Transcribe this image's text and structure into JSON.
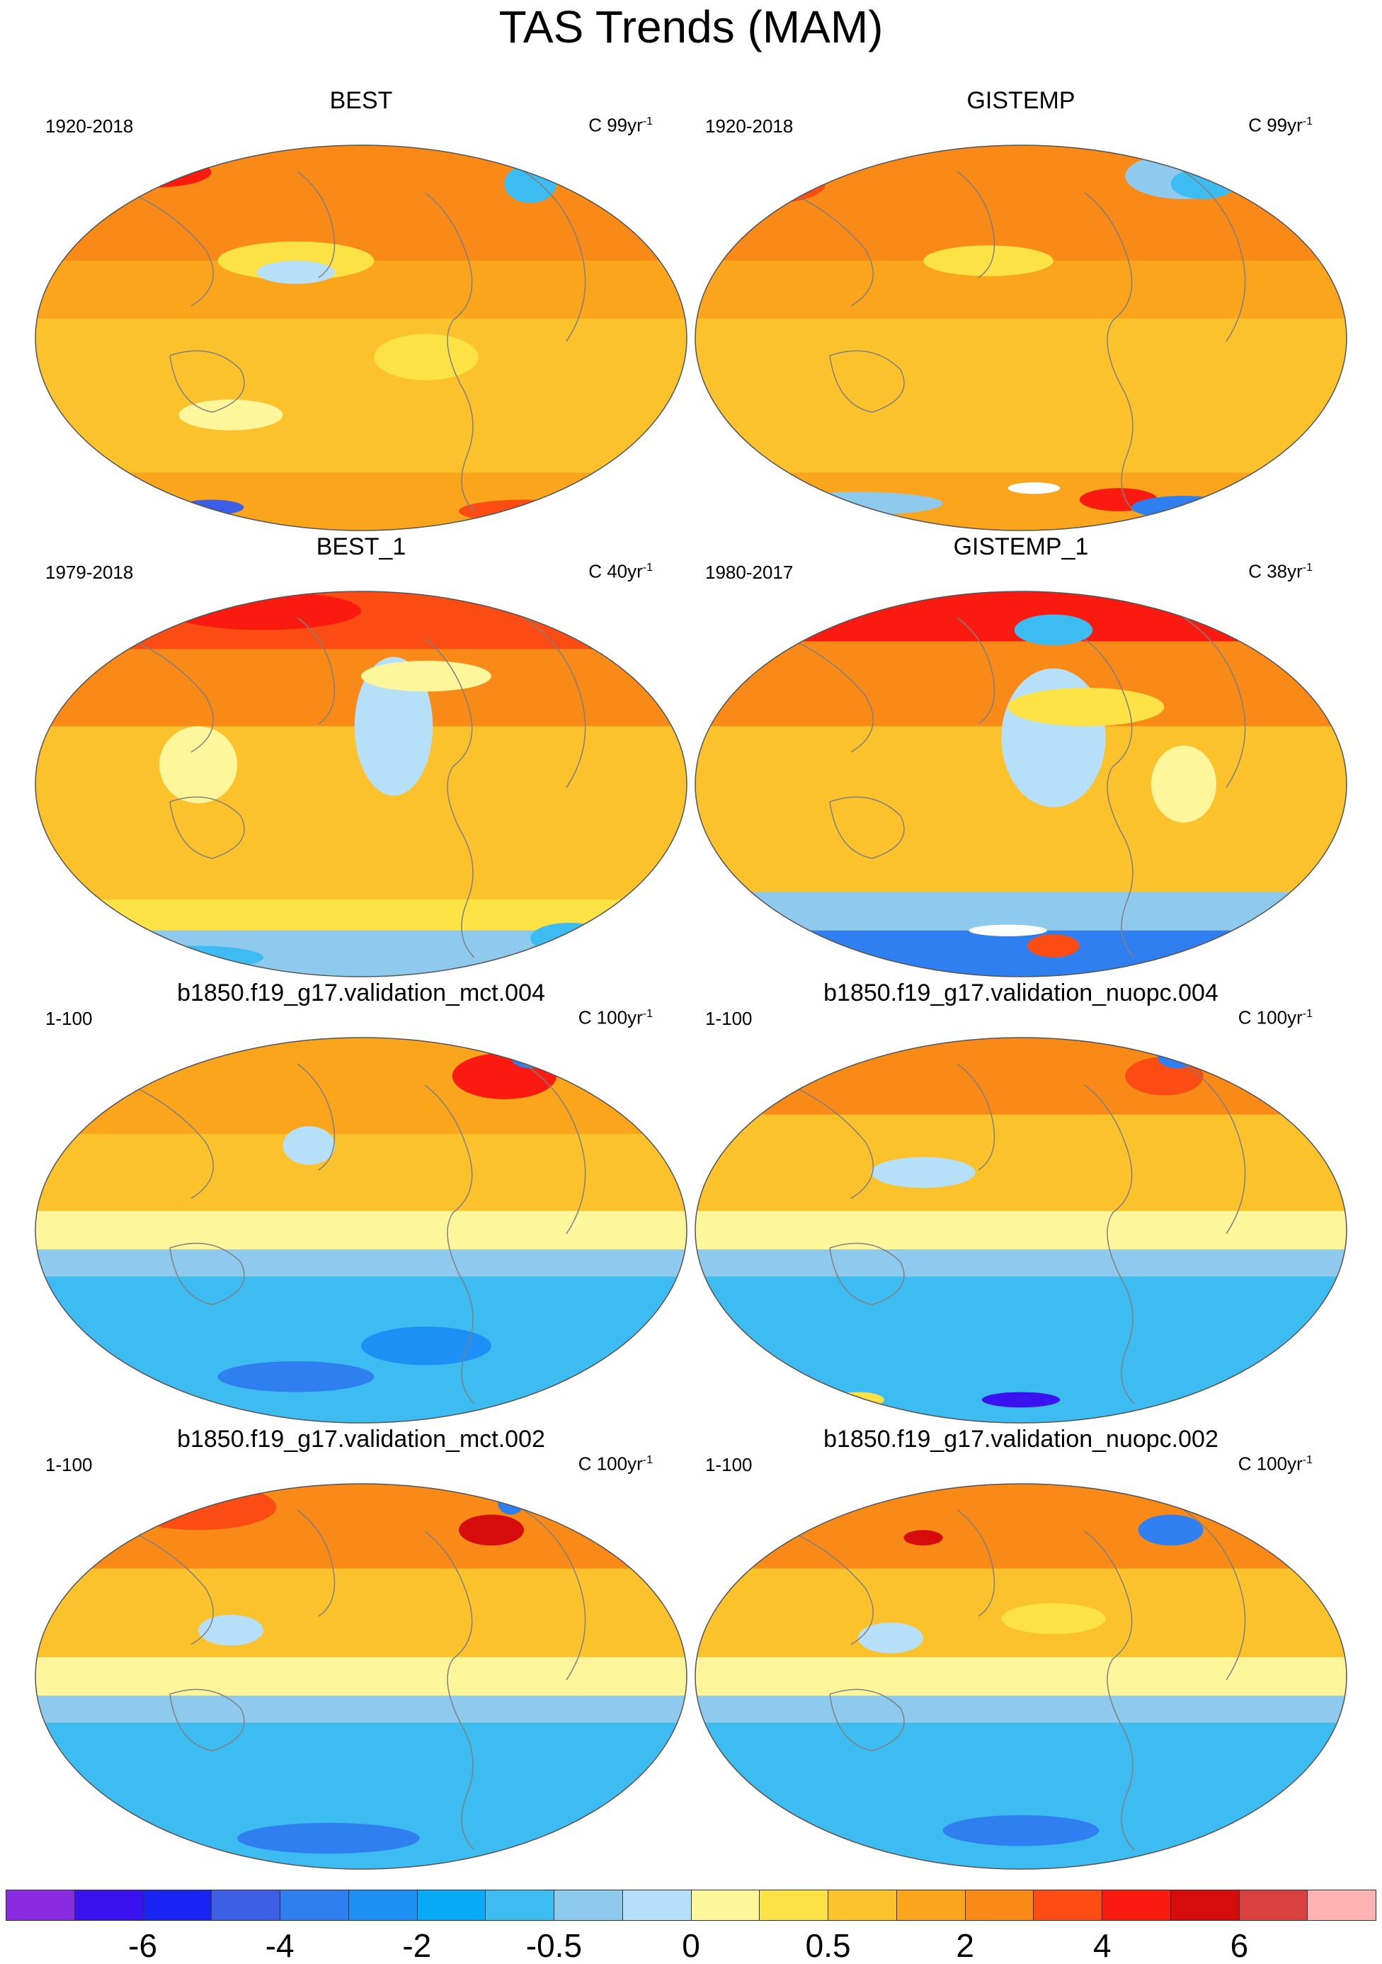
{
  "title": "TAS Trends (MAM)",
  "panels": [
    {
      "title": "BEST",
      "period": "1920-2018",
      "units_base": "C 99yr",
      "units_exp": "-1",
      "pattern": "obs_long_a"
    },
    {
      "title": "GISTEMP",
      "period": "1920-2018",
      "units_base": "C 99yr",
      "units_exp": "-1",
      "pattern": "obs_long_b"
    },
    {
      "title": "BEST_1",
      "period": "1979-2018",
      "units_base": "C 40yr",
      "units_exp": "-1",
      "pattern": "obs_short_a"
    },
    {
      "title": "GISTEMP_1",
      "period": "1980-2017",
      "units_base": "C 38yr",
      "units_exp": "-1",
      "pattern": "obs_short_b"
    },
    {
      "title": "b1850.f19_g17.validation_mct.004",
      "period": "1-100",
      "units_base": "C 100yr",
      "units_exp": "-1",
      "pattern": "model_a"
    },
    {
      "title": "b1850.f19_g17.validation_nuopc.004",
      "period": "1-100",
      "units_base": "C 100yr",
      "units_exp": "-1",
      "pattern": "model_b"
    },
    {
      "title": "b1850.f19_g17.validation_mct.002",
      "period": "1-100",
      "units_base": "C 100yr",
      "units_exp": "-1",
      "pattern": "model_c"
    },
    {
      "title": "b1850.f19_g17.validation_nuopc.002",
      "period": "1-100",
      "units_base": "C 100yr",
      "units_exp": "-1",
      "pattern": "model_d"
    }
  ],
  "colorbar": {
    "colors": [
      "#8a2be2",
      "#3a12f0",
      "#1a24f2",
      "#3d5fe6",
      "#2f7ff0",
      "#1e8ff5",
      "#09aaf5",
      "#3dbcf2",
      "#8ec9ee",
      "#b6e0f8",
      "#fff59a",
      "#fde246",
      "#fbc22c",
      "#fba51c",
      "#f98a17",
      "#fb4c13",
      "#fa1a10",
      "#d60c0c",
      "#d94040",
      "#ffb3b3"
    ],
    "labels": [
      "-6",
      "-4",
      "-2",
      "-0.5",
      "0",
      "0.5",
      "2",
      "4",
      "6"
    ]
  },
  "legend_colors": {
    "ocean_coast": "#808080"
  }
}
